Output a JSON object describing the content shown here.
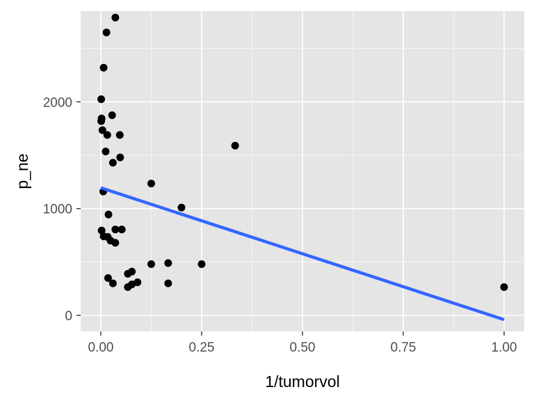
{
  "chart_data": {
    "type": "scatter",
    "title": "",
    "xlabel": "1/tumorvol",
    "ylabel": "p_ne",
    "xlim": [
      -0.05,
      1.05
    ],
    "ylim": [
      -150,
      2850
    ],
    "x_ticks": [
      0.0,
      0.25,
      0.5,
      0.75,
      1.0
    ],
    "x_tick_labels": [
      "0.00",
      "0.25",
      "0.50",
      "0.75",
      "1.00"
    ],
    "y_ticks": [
      0,
      1000,
      2000
    ],
    "y_tick_labels": [
      "0",
      "1000",
      "2000"
    ],
    "grid": true,
    "background": "grey",
    "series": [
      {
        "type": "scatter",
        "color": "#000000",
        "points": [
          {
            "x": 0.036,
            "y": 2790
          },
          {
            "x": 0.014,
            "y": 2650
          },
          {
            "x": 0.007,
            "y": 2320
          },
          {
            "x": 0.001,
            "y": 2025
          },
          {
            "x": 0.002,
            "y": 1845
          },
          {
            "x": 0.001,
            "y": 1820
          },
          {
            "x": 0.028,
            "y": 1875
          },
          {
            "x": 0.004,
            "y": 1735
          },
          {
            "x": 0.016,
            "y": 1690
          },
          {
            "x": 0.047,
            "y": 1690
          },
          {
            "x": 0.012,
            "y": 1535
          },
          {
            "x": 0.048,
            "y": 1480
          },
          {
            "x": 0.03,
            "y": 1430
          },
          {
            "x": 0.333,
            "y": 1590
          },
          {
            "x": 0.125,
            "y": 1235
          },
          {
            "x": 0.006,
            "y": 1160
          },
          {
            "x": 0.2,
            "y": 1010
          },
          {
            "x": 0.019,
            "y": 945
          },
          {
            "x": 0.002,
            "y": 795
          },
          {
            "x": 0.036,
            "y": 805
          },
          {
            "x": 0.052,
            "y": 805
          },
          {
            "x": 0.007,
            "y": 740
          },
          {
            "x": 0.017,
            "y": 735
          },
          {
            "x": 0.024,
            "y": 700
          },
          {
            "x": 0.036,
            "y": 680
          },
          {
            "x": 0.167,
            "y": 490
          },
          {
            "x": 0.125,
            "y": 480
          },
          {
            "x": 0.25,
            "y": 480
          },
          {
            "x": 0.077,
            "y": 410
          },
          {
            "x": 0.067,
            "y": 390
          },
          {
            "x": 0.018,
            "y": 350
          },
          {
            "x": 0.091,
            "y": 310
          },
          {
            "x": 0.03,
            "y": 300
          },
          {
            "x": 0.167,
            "y": 300
          },
          {
            "x": 0.077,
            "y": 290
          },
          {
            "x": 0.067,
            "y": 265
          },
          {
            "x": 1.0,
            "y": 265
          }
        ]
      },
      {
        "type": "line",
        "color": "#3366FF",
        "points": [
          {
            "x": 0.0,
            "y": 1195
          },
          {
            "x": 1.0,
            "y": -40
          }
        ]
      }
    ]
  }
}
